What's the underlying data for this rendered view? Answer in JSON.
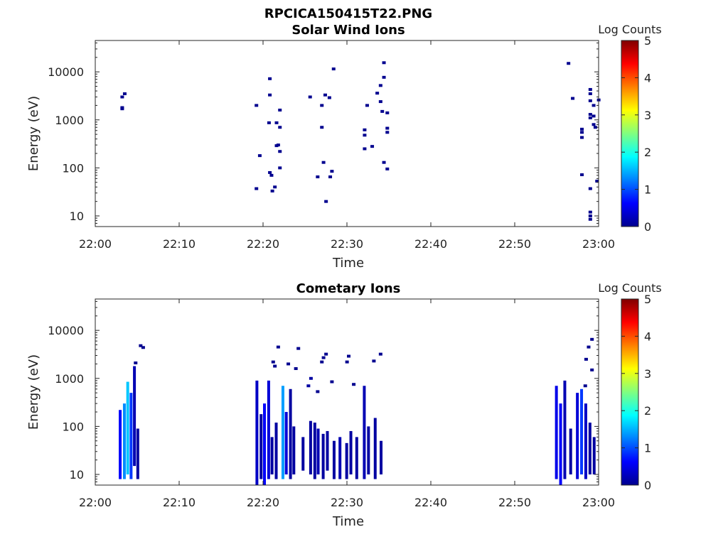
{
  "figure": {
    "title": "RPCICA150415T22.PNG"
  },
  "colormap": {
    "stops": [
      "#00008f",
      "#0000ff",
      "#0080ff",
      "#00ffff",
      "#80ff80",
      "#ffff00",
      "#ff8000",
      "#ff0000",
      "#800000"
    ]
  },
  "chart_data": [
    {
      "type": "heatmap",
      "title": "Solar Wind Ions",
      "xlabel": "Time",
      "ylabel": "Energy (eV)",
      "x_unit": "minutes after 22:00",
      "xlim": [
        "22:00",
        "23:00"
      ],
      "x_ticks": [
        "22:00",
        "22:10",
        "22:20",
        "22:30",
        "22:40",
        "22:50",
        "23:00"
      ],
      "y_scale": "log",
      "ylim": [
        6,
        45000
      ],
      "y_ticks": [
        "10",
        "100",
        "1000",
        "10000"
      ],
      "colorbar": {
        "label": "Log Counts",
        "range": [
          0,
          5
        ],
        "ticks": [
          "0",
          "1",
          "2",
          "3",
          "4",
          "5"
        ]
      },
      "cells": [
        [
          3.0,
          1700,
          0.0
        ],
        [
          3.0,
          1800,
          0.0
        ],
        [
          3.0,
          3000,
          0.0
        ],
        [
          3.3,
          3500,
          0.0
        ],
        [
          19.0,
          2000,
          0.0
        ],
        [
          19.0,
          37,
          0.0
        ],
        [
          19.4,
          180,
          0.0
        ],
        [
          20.5,
          870,
          0.0
        ],
        [
          20.6,
          3300,
          0.0
        ],
        [
          20.6,
          7200,
          0.0
        ],
        [
          20.6,
          80,
          0.0
        ],
        [
          20.8,
          70,
          0.0
        ],
        [
          20.9,
          33,
          0.0
        ],
        [
          21.2,
          40,
          0.0
        ],
        [
          21.4,
          870,
          0.0
        ],
        [
          21.4,
          290,
          0.0
        ],
        [
          21.6,
          300,
          0.0
        ],
        [
          21.8,
          220,
          0.0
        ],
        [
          21.8,
          700,
          0.0
        ],
        [
          21.8,
          1600,
          0.0
        ],
        [
          21.8,
          100,
          0.0
        ],
        [
          25.4,
          3000,
          0.0
        ],
        [
          26.3,
          65,
          0.0
        ],
        [
          26.8,
          700,
          0.0
        ],
        [
          26.8,
          2000,
          0.0
        ],
        [
          27.0,
          130,
          0.0
        ],
        [
          27.2,
          3300,
          0.0
        ],
        [
          27.3,
          20,
          0.0
        ],
        [
          27.7,
          2900,
          0.0
        ],
        [
          27.8,
          65,
          0.0
        ],
        [
          28.0,
          85,
          0.0
        ],
        [
          28.2,
          11500,
          0.0
        ],
        [
          31.9,
          250,
          0.0
        ],
        [
          31.9,
          620,
          0.0
        ],
        [
          31.9,
          480,
          0.0
        ],
        [
          32.2,
          2000,
          0.0
        ],
        [
          32.8,
          280,
          0.0
        ],
        [
          33.4,
          3600,
          0.0
        ],
        [
          33.8,
          5200,
          0.0
        ],
        [
          33.8,
          2400,
          0.0
        ],
        [
          34.0,
          1500,
          0.0
        ],
        [
          34.2,
          15500,
          0.0
        ],
        [
          34.2,
          7700,
          0.0
        ],
        [
          34.2,
          130,
          0.0
        ],
        [
          34.6,
          1400,
          0.0
        ],
        [
          34.6,
          670,
          0.0
        ],
        [
          34.6,
          550,
          0.0
        ],
        [
          34.6,
          95,
          0.0
        ],
        [
          56.2,
          15000,
          0.0
        ],
        [
          56.7,
          2800,
          0.0
        ],
        [
          57.8,
          640,
          0.0
        ],
        [
          57.8,
          550,
          0.0
        ],
        [
          57.8,
          430,
          0.0
        ],
        [
          57.8,
          72,
          0.0
        ],
        [
          58.8,
          4300,
          0.0
        ],
        [
          58.8,
          3500,
          0.0
        ],
        [
          58.8,
          2500,
          0.0
        ],
        [
          58.8,
          1300,
          0.0
        ],
        [
          58.8,
          1100,
          0.0
        ],
        [
          58.8,
          37,
          0.0
        ],
        [
          58.8,
          12,
          0.0
        ],
        [
          58.8,
          10,
          0.0
        ],
        [
          58.8,
          8.5,
          0.0
        ],
        [
          59.2,
          2000,
          0.0
        ],
        [
          59.2,
          1200,
          0.0
        ],
        [
          59.2,
          800,
          0.0
        ],
        [
          59.4,
          700,
          0.0
        ],
        [
          59.6,
          53,
          0.0
        ],
        [
          59.8,
          2600,
          0.0
        ]
      ]
    },
    {
      "type": "heatmap",
      "title": "Cometary Ions",
      "xlabel": "Time",
      "ylabel": "Energy (eV)",
      "x_unit": "minutes after 22:00",
      "xlim": [
        "22:00",
        "23:00"
      ],
      "x_ticks": [
        "22:00",
        "22:10",
        "22:20",
        "22:30",
        "22:40",
        "22:50",
        "23:00"
      ],
      "y_scale": "log",
      "ylim": [
        6,
        45000
      ],
      "y_ticks": [
        "10",
        "100",
        "1000",
        "10000"
      ],
      "colorbar": {
        "label": "Log Counts",
        "range": [
          0,
          5
        ],
        "ticks": [
          "0",
          "1",
          "2",
          "3",
          "4",
          "5"
        ]
      },
      "columns": [
        {
          "t": 2.8,
          "e1": 8,
          "e2": 220,
          "v": 0.6
        },
        {
          "t": 3.3,
          "e1": 8,
          "e2": 300,
          "v": 1.3
        },
        {
          "t": 3.7,
          "e1": 10,
          "e2": 850,
          "v": 1.6
        },
        {
          "t": 4.1,
          "e1": 8,
          "e2": 500,
          "v": 0.9
        },
        {
          "t": 4.5,
          "e1": 15,
          "e2": 1800,
          "v": 0.2
        },
        {
          "t": 4.9,
          "e1": 8,
          "e2": 90,
          "v": 0.1
        },
        {
          "t": 19.1,
          "e1": 6,
          "e2": 900,
          "v": 0.3
        },
        {
          "t": 19.6,
          "e1": 8,
          "e2": 180,
          "v": 0.1
        },
        {
          "t": 20.0,
          "e1": 6,
          "e2": 300,
          "v": 0.6
        },
        {
          "t": 20.5,
          "e1": 8,
          "e2": 900,
          "v": 0.4
        },
        {
          "t": 20.9,
          "e1": 10,
          "e2": 60,
          "v": 0.1
        },
        {
          "t": 21.4,
          "e1": 8,
          "e2": 120,
          "v": 0.1
        },
        {
          "t": 22.2,
          "e1": 8,
          "e2": 700,
          "v": 1.4
        },
        {
          "t": 22.6,
          "e1": 10,
          "e2": 200,
          "v": 0.4
        },
        {
          "t": 23.1,
          "e1": 8,
          "e2": 600,
          "v": 0.1
        },
        {
          "t": 23.5,
          "e1": 10,
          "e2": 100,
          "v": 0.1
        },
        {
          "t": 24.6,
          "e1": 12,
          "e2": 60,
          "v": 0.1
        },
        {
          "t": 25.5,
          "e1": 10,
          "e2": 130,
          "v": 0.1
        },
        {
          "t": 26.0,
          "e1": 8,
          "e2": 120,
          "v": 0.1
        },
        {
          "t": 26.4,
          "e1": 10,
          "e2": 90,
          "v": 0.2
        },
        {
          "t": 27.0,
          "e1": 8,
          "e2": 70,
          "v": 0.1
        },
        {
          "t": 27.5,
          "e1": 12,
          "e2": 80,
          "v": 0.1
        },
        {
          "t": 28.3,
          "e1": 8,
          "e2": 50,
          "v": 0.1
        },
        {
          "t": 29.0,
          "e1": 8,
          "e2": 60,
          "v": 0.2
        },
        {
          "t": 29.8,
          "e1": 8,
          "e2": 45,
          "v": 0.1
        },
        {
          "t": 30.3,
          "e1": 10,
          "e2": 80,
          "v": 0.1
        },
        {
          "t": 31.0,
          "e1": 8,
          "e2": 60,
          "v": 0.1
        },
        {
          "t": 31.9,
          "e1": 8,
          "e2": 700,
          "v": 0.2
        },
        {
          "t": 32.4,
          "e1": 10,
          "e2": 100,
          "v": 0.1
        },
        {
          "t": 33.2,
          "e1": 8,
          "e2": 150,
          "v": 0.1
        },
        {
          "t": 33.9,
          "e1": 10,
          "e2": 50,
          "v": 0.1
        },
        {
          "t": 54.8,
          "e1": 8,
          "e2": 700,
          "v": 0.5
        },
        {
          "t": 55.3,
          "e1": 6,
          "e2": 300,
          "v": 0.6
        },
        {
          "t": 55.8,
          "e1": 8,
          "e2": 900,
          "v": 0.2
        },
        {
          "t": 56.5,
          "e1": 10,
          "e2": 90,
          "v": 0.1
        },
        {
          "t": 57.3,
          "e1": 8,
          "e2": 500,
          "v": 0.4
        },
        {
          "t": 57.8,
          "e1": 10,
          "e2": 600,
          "v": 0.9
        },
        {
          "t": 58.3,
          "e1": 8,
          "e2": 300,
          "v": 0.3
        },
        {
          "t": 58.8,
          "e1": 10,
          "e2": 120,
          "v": 0.1
        },
        {
          "t": 59.3,
          "e1": 10,
          "e2": 60,
          "v": 0.1
        }
      ],
      "cells": [
        [
          5.2,
          4800,
          0.0
        ],
        [
          5.5,
          4400,
          0.0
        ],
        [
          4.6,
          2100,
          0.0
        ],
        [
          21.0,
          2200,
          0.0
        ],
        [
          21.6,
          4500,
          0.0
        ],
        [
          21.2,
          1800,
          0.0
        ],
        [
          22.8,
          2000,
          0.0
        ],
        [
          24.0,
          4200,
          0.0
        ],
        [
          23.7,
          1600,
          0.0
        ],
        [
          27.3,
          3200,
          0.0
        ],
        [
          27.0,
          2700,
          0.0
        ],
        [
          26.8,
          2200,
          0.0
        ],
        [
          30.0,
          2900,
          0.0
        ],
        [
          29.8,
          2200,
          0.0
        ],
        [
          33.0,
          2300,
          0.0
        ],
        [
          33.8,
          3200,
          0.0
        ],
        [
          25.5,
          1000,
          0.1
        ],
        [
          25.2,
          700,
          0.1
        ],
        [
          26.3,
          530,
          0.0
        ],
        [
          28.0,
          850,
          0.0
        ],
        [
          30.6,
          750,
          0.0
        ],
        [
          58.3,
          2500,
          0.0
        ],
        [
          58.6,
          4500,
          0.0
        ],
        [
          59.0,
          6500,
          0.0
        ],
        [
          58.2,
          700,
          0.0
        ],
        [
          59.0,
          1500,
          0.0
        ]
      ]
    }
  ]
}
